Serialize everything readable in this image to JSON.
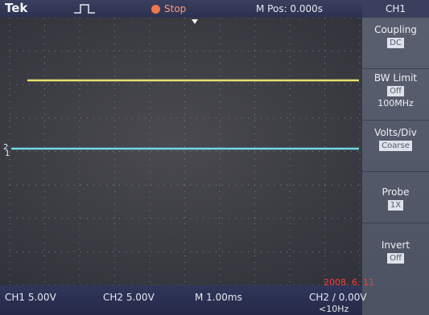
{
  "header": {
    "brand": "Tek",
    "status": "Stop",
    "position": "M Pos: 0.000s",
    "channel": "CH1"
  },
  "menu": [
    {
      "label": "Coupling",
      "value": "DC"
    },
    {
      "label": "BW Limit",
      "value": "Off",
      "note": "100MHz"
    },
    {
      "label": "Volts/Div",
      "value": "Coarse"
    },
    {
      "label": "Probe",
      "value": "1X"
    },
    {
      "label": "Invert",
      "value": "Off"
    }
  ],
  "markers": [
    "2",
    "1"
  ],
  "footer": {
    "ch1": "CH1 5.00V",
    "ch2": "CH2 5.00V",
    "time": "M 1.00ms",
    "trigger": "CH2 / 0.00V",
    "frequency": "<10Hz",
    "date": "2008. 6. 11"
  }
}
